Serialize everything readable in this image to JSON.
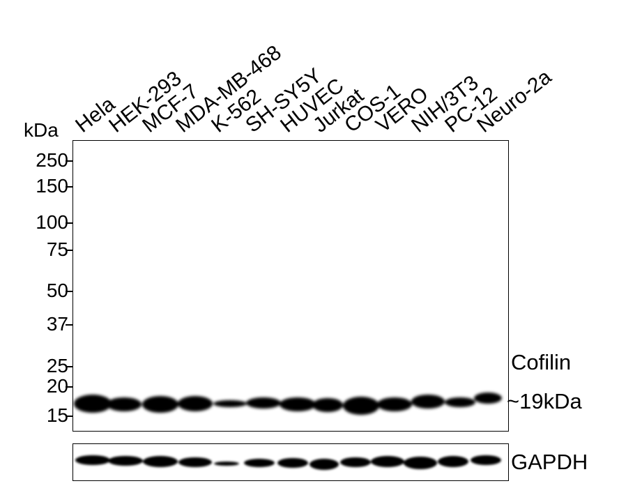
{
  "lanes": [
    "Hela",
    "HEK-293",
    "MCF-7",
    "MDA-MB-468",
    "K-562",
    "SH-SY5Y",
    "HUVEC",
    "Jurkat",
    "COS-1",
    "VERO",
    "NIH/3T3",
    "PC-12",
    "Neuro-2a"
  ],
  "kda_label": "kDa",
  "markers": [
    "250",
    "150",
    "100",
    "75",
    "50",
    "37",
    "25",
    "20",
    "15"
  ],
  "target": {
    "name": "Cofilin",
    "size": "~19kDa"
  },
  "loading_control": "GAPDH",
  "colors": {
    "band": "#000000",
    "background": "#ffffff"
  }
}
